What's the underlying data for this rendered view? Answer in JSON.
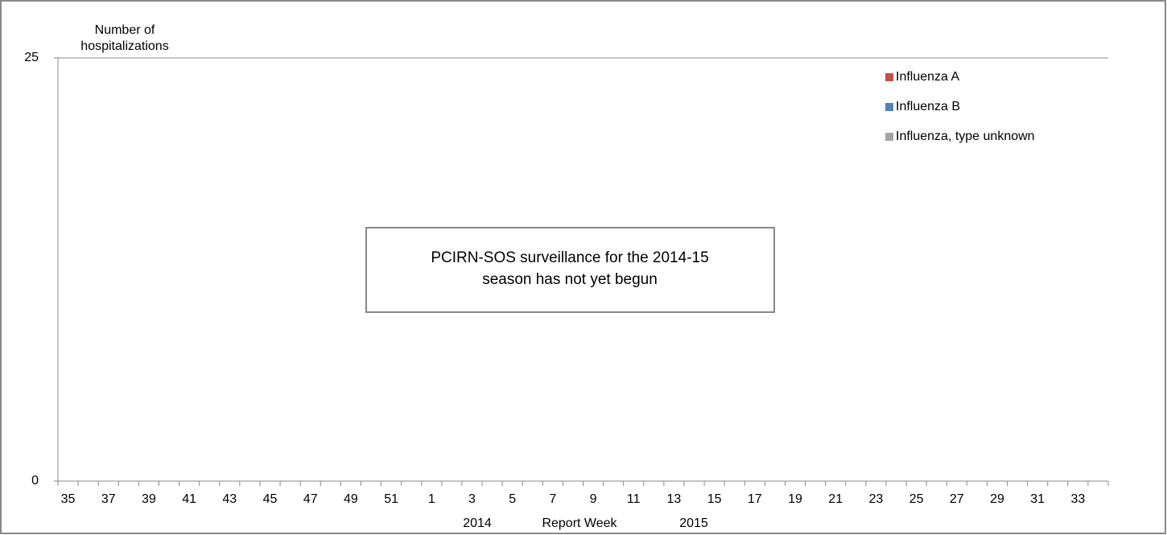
{
  "chart_data": {
    "type": "bar",
    "stacked": true,
    "y_label": [
      "Number of",
      "hospitalizations"
    ],
    "x_label": "Report Week",
    "x_group_labels": [
      "2014",
      "2015"
    ],
    "annotation": [
      "PCIRN-SOS surveillance for the 2014-15",
      "season has not yet begun"
    ],
    "categories": [
      "35",
      null,
      "37",
      null,
      "39",
      null,
      "41",
      null,
      "43",
      null,
      "45",
      null,
      "47",
      null,
      "49",
      null,
      "51",
      null,
      "1",
      null,
      "3",
      null,
      "5",
      null,
      "7",
      null,
      "9",
      null,
      "11",
      null,
      "13",
      null,
      "15",
      null,
      "17",
      null,
      "19",
      null,
      "21",
      null,
      "23",
      null,
      "25",
      null,
      "27",
      null,
      "29",
      null,
      "31",
      null,
      "33",
      null
    ],
    "series": [
      {
        "name": "Influenza A",
        "color": "#c0504d",
        "values": [
          null,
          null,
          null,
          null,
          null,
          null,
          null,
          null,
          null,
          null,
          null,
          null,
          null,
          null,
          null,
          null,
          null,
          null,
          null,
          null,
          null,
          null,
          null,
          null,
          null,
          null,
          null,
          null,
          null,
          null,
          null,
          null,
          null,
          null,
          null,
          null,
          null,
          null,
          null,
          null,
          null,
          null,
          null,
          null,
          null,
          null,
          null,
          null,
          null,
          null,
          null,
          null
        ]
      },
      {
        "name": "Influenza B",
        "color": "#4f81bd",
        "values": [
          null,
          null,
          null,
          null,
          null,
          null,
          null,
          null,
          null,
          null,
          null,
          null,
          null,
          null,
          null,
          null,
          null,
          null,
          null,
          null,
          null,
          null,
          null,
          null,
          null,
          null,
          null,
          null,
          null,
          null,
          null,
          null,
          null,
          null,
          null,
          null,
          null,
          null,
          null,
          null,
          null,
          null,
          null,
          null,
          null,
          null,
          null,
          null,
          null,
          null,
          null,
          null
        ]
      },
      {
        "name": "Influenza, type unknown",
        "color": "#a5a5a5",
        "values": [
          null,
          null,
          null,
          null,
          null,
          null,
          null,
          null,
          null,
          null,
          null,
          null,
          null,
          null,
          null,
          null,
          null,
          null,
          null,
          null,
          null,
          null,
          null,
          null,
          null,
          null,
          null,
          null,
          null,
          null,
          null,
          null,
          null,
          null,
          null,
          null,
          null,
          null,
          null,
          null,
          null,
          null,
          null,
          null,
          null,
          null,
          null,
          null,
          null,
          null,
          null,
          null
        ]
      }
    ],
    "ylim": [
      0,
      25
    ],
    "yticks": [
      0,
      25
    ],
    "grid": true,
    "legend": "top-right"
  }
}
